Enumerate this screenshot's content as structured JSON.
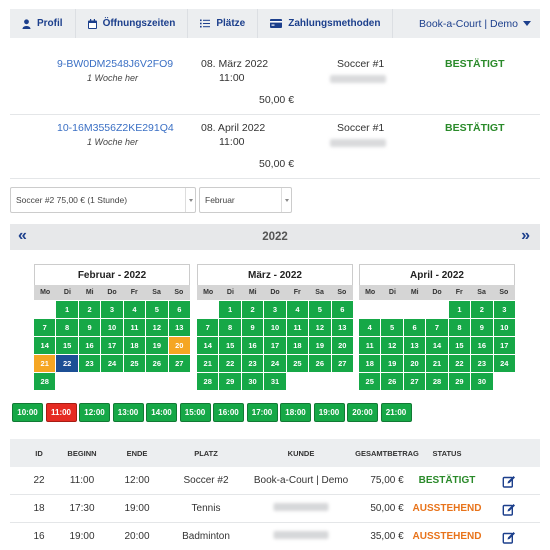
{
  "nav": {
    "items": [
      {
        "label": "Profil",
        "icon": "user-icon"
      },
      {
        "label": "Öffnungszeiten",
        "icon": "calendar-icon"
      },
      {
        "label": "Plätze",
        "icon": "list-icon"
      },
      {
        "label": "Zahlungsmethoden",
        "icon": "credit-card-icon"
      }
    ],
    "account": "Book-a-Court | Demo"
  },
  "bookings": [
    {
      "id": "9-BW0DM2548J6V2FO9",
      "relative": "1 Woche her",
      "date": "08. März 2022",
      "time": "11:00",
      "price": "50,00 €",
      "court": "Soccer #1",
      "status": "BESTÄTIGT"
    },
    {
      "id": "10-16M3556Z2KE291Q4",
      "relative": "1 Woche her",
      "date": "08. April 2022",
      "time": "11:00",
      "price": "50,00 €",
      "court": "Soccer #1",
      "status": "BESTÄTIGT"
    }
  ],
  "filters": {
    "court_select": "Soccer #2 75,00 € (1 Stunde)",
    "month_select": "Februar"
  },
  "year": "2022",
  "weekdays": [
    "Mo",
    "Di",
    "Mi",
    "Do",
    "Fr",
    "Sa",
    "So"
  ],
  "colors": {
    "available": "#16a847",
    "today": "#f5a623",
    "selected": "#1c4f95",
    "slot_selected": "#e52b22",
    "confirmed": "#2a8a2a",
    "pending": "#e8731a"
  },
  "calendars": [
    {
      "title": "Februar - 2022",
      "offset": 1,
      "days": 28,
      "orange": [
        20,
        21
      ],
      "blue": [
        22
      ]
    },
    {
      "title": "März - 2022",
      "offset": 1,
      "days": 31,
      "orange": [],
      "blue": []
    },
    {
      "title": "April - 2022",
      "offset": 4,
      "days": 30,
      "orange": [],
      "blue": []
    }
  ],
  "time_slots": [
    "10:00",
    "11:00",
    "12:00",
    "13:00",
    "14:00",
    "15:00",
    "16:00",
    "17:00",
    "18:00",
    "19:00",
    "20:00",
    "21:00"
  ],
  "selected_slot": "11:00",
  "table": {
    "headers": [
      "ID",
      "BEGINN",
      "ENDE",
      "PLATZ",
      "KUNDE",
      "GESAMTBETRAG",
      "STATUS"
    ],
    "rows": [
      {
        "id": "22",
        "start": "11:00",
        "end": "12:00",
        "court": "Soccer #2",
        "customer": "Book-a-Court | Demo",
        "total": "75,00 €",
        "status": "BESTÄTIGT",
        "state": "ok"
      },
      {
        "id": "18",
        "start": "17:30",
        "end": "19:00",
        "court": "Tennis",
        "customer": "",
        "total": "50,00 €",
        "status": "AUSSTEHEND",
        "state": "pend"
      },
      {
        "id": "16",
        "start": "19:00",
        "end": "20:00",
        "court": "Badminton",
        "customer": "",
        "total": "35,00 €",
        "status": "AUSSTEHEND",
        "state": "pend"
      }
    ]
  }
}
